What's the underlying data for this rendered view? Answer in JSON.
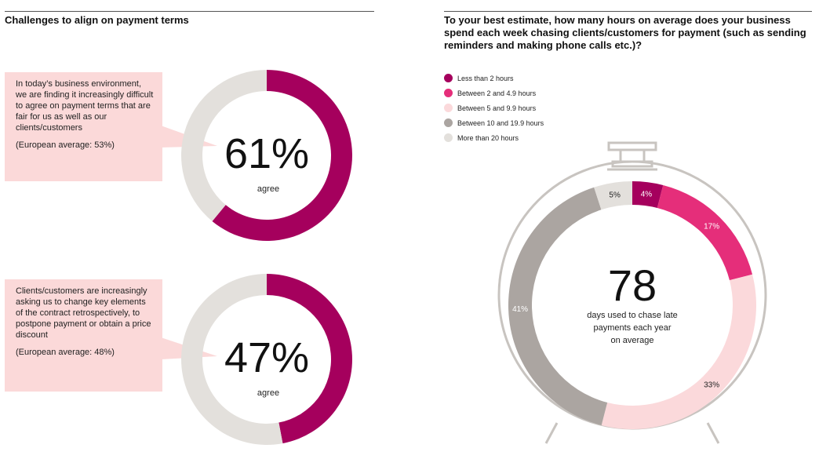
{
  "left": {
    "heading": "Challenges to align on payment terms",
    "items": [
      {
        "statement": "In today’s business environment, we are finding it increasingly difficult to agree on payment terms that are fair for us as well as our clients/customers",
        "european_average": "(European average: 53%)",
        "value_label": "61%",
        "value_caption": "agree"
      },
      {
        "statement": "Clients/customers are increasingly asking us to change key elements of the contract retrospectively, to postpone payment or obtain a price discount",
        "european_average": "(European average: 48%)",
        "value_label": "47%",
        "value_caption": "agree"
      }
    ]
  },
  "right": {
    "question": "To your best estimate, how many hours on average does your business spend each week chasing clients/customers for payment (such as sending reminders and making phone calls etc.)?",
    "center_value": "78",
    "center_caption": [
      "days used to chase late",
      "payments each year",
      "on average"
    ]
  },
  "colors": {
    "magenta": "#a5005d",
    "pink": "#e52e7a",
    "light_pink": "#fbd9db",
    "grey": "#aba5a1",
    "light_grey": "#e3e0dc",
    "callout_bg": "#fbd9d9"
  },
  "chart_data": [
    {
      "type": "pie",
      "variant": "donut",
      "categories": [
        "agree",
        ""
      ],
      "values": [
        61,
        39
      ],
      "colors": [
        "#a5005d",
        "#e3e0dc"
      ],
      "center_label": "61%",
      "center_caption": "agree"
    },
    {
      "type": "pie",
      "variant": "donut",
      "categories": [
        "agree",
        ""
      ],
      "values": [
        47,
        53
      ],
      "colors": [
        "#a5005d",
        "#e3e0dc"
      ],
      "center_label": "47%",
      "center_caption": "agree"
    },
    {
      "type": "pie",
      "variant": "donut",
      "title": "To your best estimate, how many hours on average does your business spend each week chasing clients/customers for payment (such as sending reminders and making phone calls etc.)?",
      "categories": [
        "Less than 2 hours",
        "Between 2 and 4.9 hours",
        "Between 5 and 9.9 hours",
        "Between 10 and 19.9 hours",
        "More than 20 hours"
      ],
      "values": [
        4,
        17,
        33,
        41,
        5
      ],
      "labels": [
        "4%",
        "17%",
        "33%",
        "41%",
        "5%"
      ],
      "colors": [
        "#a5005d",
        "#e52e7a",
        "#fbd9db",
        "#aba5a1",
        "#e3e0dc"
      ],
      "legend_position": "top-left",
      "center_label": "78",
      "center_caption": "days used to chase late payments each year on average"
    }
  ]
}
